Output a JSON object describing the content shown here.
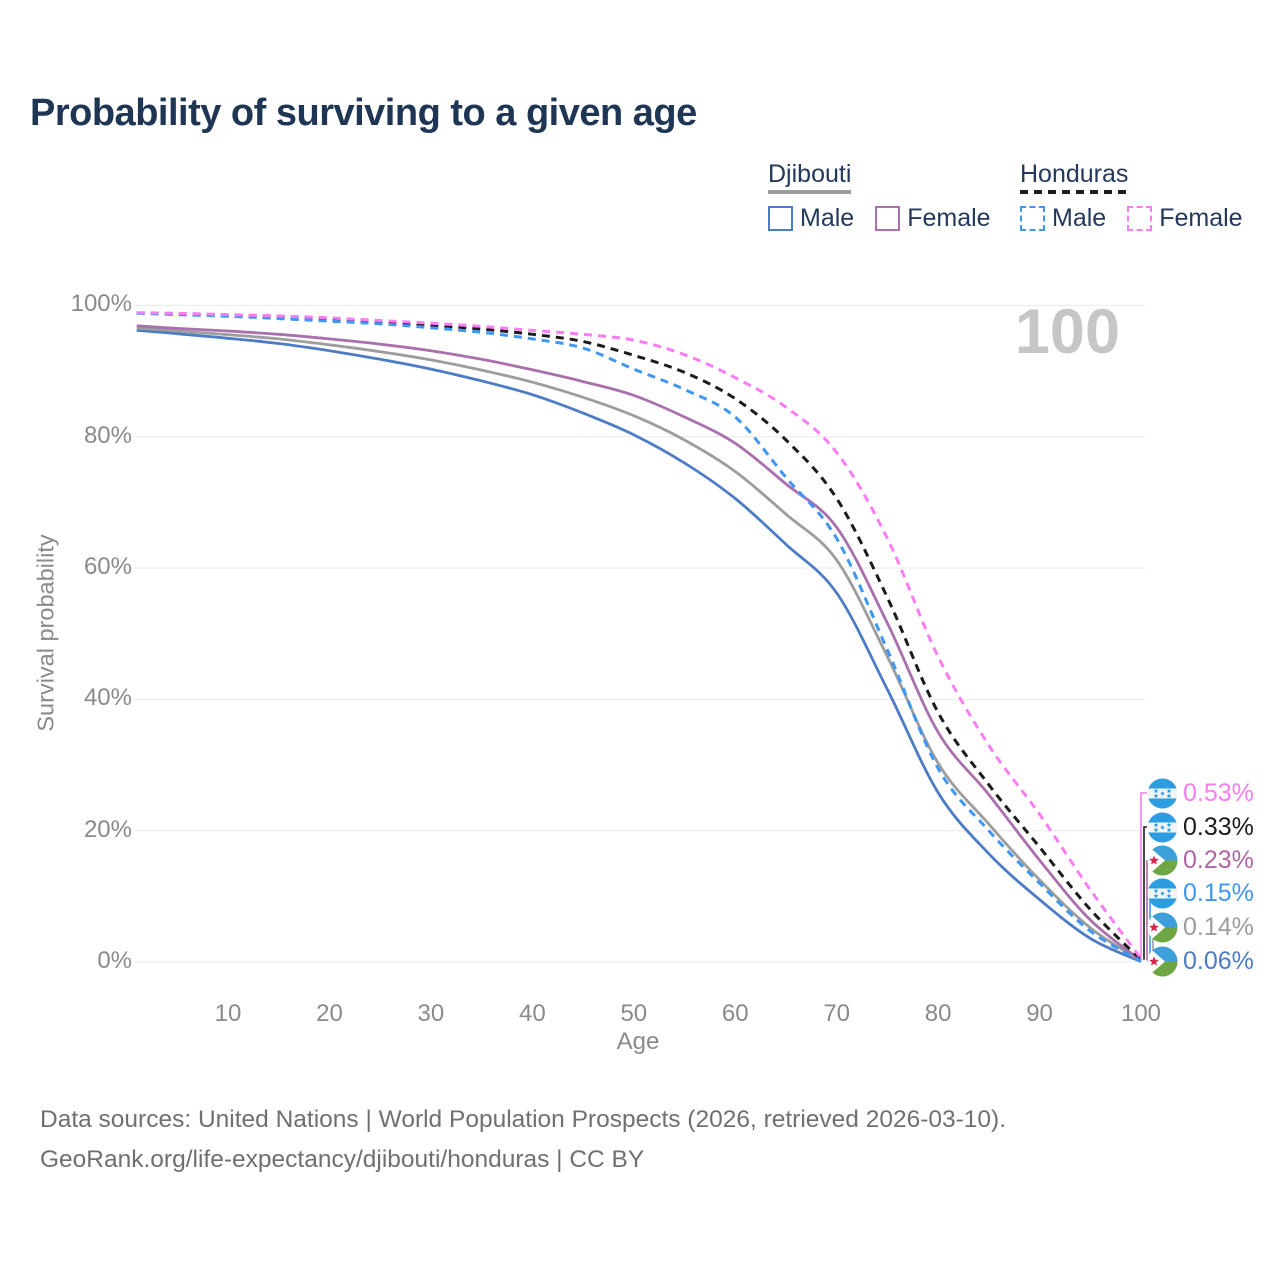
{
  "title": "Probability of surviving to a given age",
  "watermark": "100",
  "legend": {
    "groups": [
      {
        "country": "Djibouti",
        "underline_style": "solid",
        "underline_color": "#9d9d9d",
        "items": [
          {
            "label": "Male",
            "color": "#4d7cc7",
            "dashed": false
          },
          {
            "label": "Female",
            "color": "#aa70ad",
            "dashed": false
          }
        ]
      },
      {
        "country": "Honduras",
        "underline_style": "dashed",
        "underline_color": "#1b1b1b",
        "items": [
          {
            "label": "Male",
            "color": "#3f97f3",
            "dashed": true
          },
          {
            "label": "Female",
            "color": "#fb7df2",
            "dashed": true
          }
        ]
      }
    ]
  },
  "chart_data": {
    "type": "line",
    "title": "Probability of surviving to a given age",
    "xlabel": "Age",
    "ylabel": "Survival probability",
    "xlim": [
      0,
      100
    ],
    "ylim": [
      0,
      100
    ],
    "grid": "horizontal",
    "x_ticks": [
      10,
      20,
      30,
      40,
      50,
      60,
      70,
      80,
      90,
      100
    ],
    "y_ticks": [
      {
        "label": "0%",
        "value": 0
      },
      {
        "label": "20%",
        "value": 20
      },
      {
        "label": "40%",
        "value": 40
      },
      {
        "label": "60%",
        "value": 60
      },
      {
        "label": "80%",
        "value": 80
      },
      {
        "label": "100%",
        "value": 100
      }
    ],
    "x": [
      1,
      5,
      10,
      15,
      20,
      25,
      30,
      35,
      40,
      45,
      50,
      55,
      60,
      65,
      70,
      75,
      80,
      85,
      90,
      95,
      100
    ],
    "series": [
      {
        "name": "Djibouti Male",
        "country": "Djibouti",
        "sex": "male",
        "color": "#4d7cc7",
        "dashed": false,
        "values": [
          96.2,
          95.7,
          95.0,
          94.2,
          93.1,
          91.8,
          90.3,
          88.5,
          86.4,
          83.6,
          80.3,
          76.0,
          70.6,
          63.6,
          56.2,
          41.5,
          25.8,
          16.5,
          9.5,
          3.6,
          0.06
        ]
      },
      {
        "name": "Djibouti Total",
        "country": "Djibouti",
        "sex": "both",
        "color": "#9d9d9d",
        "dashed": false,
        "values": [
          96.55,
          96.1,
          95.55,
          94.9,
          94.0,
          92.95,
          91.7,
          90.15,
          88.3,
          86.0,
          83.2,
          79.5,
          74.7,
          68.2,
          61.2,
          46.5,
          30.3,
          21.0,
          12.5,
          5.2,
          0.14
        ]
      },
      {
        "name": "Djibouti Female",
        "country": "Djibouti",
        "sex": "female",
        "color": "#aa70ad",
        "dashed": false,
        "values": [
          96.9,
          96.5,
          96.1,
          95.6,
          94.9,
          94.1,
          93.1,
          91.8,
          90.2,
          88.4,
          86.3,
          83.0,
          79.0,
          72.8,
          66.2,
          51.6,
          35.0,
          25.5,
          15.5,
          6.4,
          0.23
        ]
      },
      {
        "name": "Honduras Total",
        "country": "Honduras",
        "sex": "both",
        "color": "#1b1b1b",
        "dashed": true,
        "values": [
          98.85,
          98.7,
          98.5,
          98.25,
          97.9,
          97.5,
          97.0,
          96.4,
          95.6,
          94.5,
          92.4,
          89.8,
          85.8,
          79.5,
          70.6,
          55.5,
          38.0,
          27.0,
          17.5,
          8.0,
          0.33
        ]
      },
      {
        "name": "Honduras Male",
        "country": "Honduras",
        "sex": "male",
        "color": "#3f97f3",
        "dashed": true,
        "values": [
          98.8,
          98.6,
          98.35,
          98.0,
          97.6,
          97.2,
          96.6,
          95.9,
          94.9,
          93.5,
          90.3,
          87.2,
          83.0,
          73.8,
          64.5,
          47.5,
          29.5,
          20.0,
          12.0,
          4.7,
          0.15
        ]
      },
      {
        "name": "Honduras Female",
        "country": "Honduras",
        "sex": "female",
        "color": "#fb7df2",
        "dashed": true,
        "values": [
          98.9,
          98.8,
          98.6,
          98.4,
          98.1,
          97.7,
          97.3,
          96.8,
          96.2,
          95.6,
          94.7,
          92.5,
          89.0,
          84.5,
          77.6,
          64.5,
          46.5,
          33.0,
          22.5,
          11.0,
          0.53
        ]
      }
    ]
  },
  "end_labels": [
    {
      "value": "0.53%",
      "color": "#fb7df2",
      "flag": "honduras",
      "series": "Honduras Female"
    },
    {
      "value": "0.33%",
      "color": "#1b1b1b",
      "flag": "honduras",
      "series": "Honduras Total"
    },
    {
      "value": "0.23%",
      "color": "#b066a6",
      "flag": "djibouti",
      "series": "Djibouti Female"
    },
    {
      "value": "0.15%",
      "color": "#3f97f3",
      "flag": "honduras",
      "series": "Honduras Male"
    },
    {
      "value": "0.14%",
      "color": "#9d9d9d",
      "flag": "djibouti",
      "series": "Djibouti Total"
    },
    {
      "value": "0.06%",
      "color": "#4d7cc7",
      "flag": "djibouti",
      "series": "Djibouti Male"
    }
  ],
  "footer": {
    "line1": "Data sources: United Nations | World Population Prospects (2026, retrieved 2026-03-10).",
    "line2": "GeoRank.org/life-expectancy/djibouti/honduras | CC BY"
  }
}
